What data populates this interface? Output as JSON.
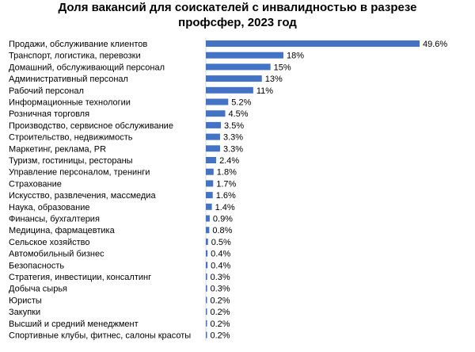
{
  "chart_data": {
    "type": "bar",
    "orientation": "horizontal",
    "title_line1": "Доля вакансий для соискателей с инвалидностью в разрезе",
    "title_line2": "профсфер, 2023 год",
    "bar_color": "#4472c4",
    "categories": [
      "Продажи, обслуживание клиентов",
      "Транспорт, логистика, перевозки",
      "Домашний, обслуживающий персонал",
      "Административный персонал",
      "Рабочий персонал",
      "Информационные технологии",
      "Розничная торговля",
      "Производство, сервисное обслуживание",
      "Строительство, недвижимость",
      "Маркетинг, реклама, PR",
      "Туризм, гостиницы, рестораны",
      "Управление персоналом, тренинги",
      "Страхование",
      "Искусство, развлечения, массмедиа",
      "Наука, образование",
      "Финансы, бухгалтерия",
      "Медицина, фармацевтика",
      "Сельское хозяйство",
      "Автомобильный бизнес",
      "Безопасность",
      "Стратегия, инвестиции, консалтинг",
      "Добыча сырья",
      "Юристы",
      "Закупки",
      "Высший и средний менеджмент",
      "Спортивные клубы, фитнес, салоны красоты"
    ],
    "values": [
      49.6,
      18,
      15,
      13,
      11,
      5.2,
      4.5,
      3.5,
      3.3,
      3.3,
      2.4,
      1.8,
      1.7,
      1.6,
      1.4,
      0.9,
      0.8,
      0.5,
      0.4,
      0.4,
      0.3,
      0.3,
      0.2,
      0.2,
      0.2,
      0.2
    ],
    "value_labels": [
      "49.6%",
      "18%",
      "15%",
      "13%",
      "11%",
      "5.2%",
      "4.5%",
      "3.5%",
      "3.3%",
      "3.3%",
      "2.4%",
      "1.8%",
      "1.7%",
      "1.6%",
      "1.4%",
      "0.9%",
      "0.8%",
      "0.5%",
      "0.4%",
      "0.4%",
      "0.3%",
      "0.3%",
      "0.2%",
      "0.2%",
      "0.2%",
      "0.2%"
    ],
    "xlim": [
      0,
      49.6
    ],
    "grid": false,
    "legend": "none"
  }
}
